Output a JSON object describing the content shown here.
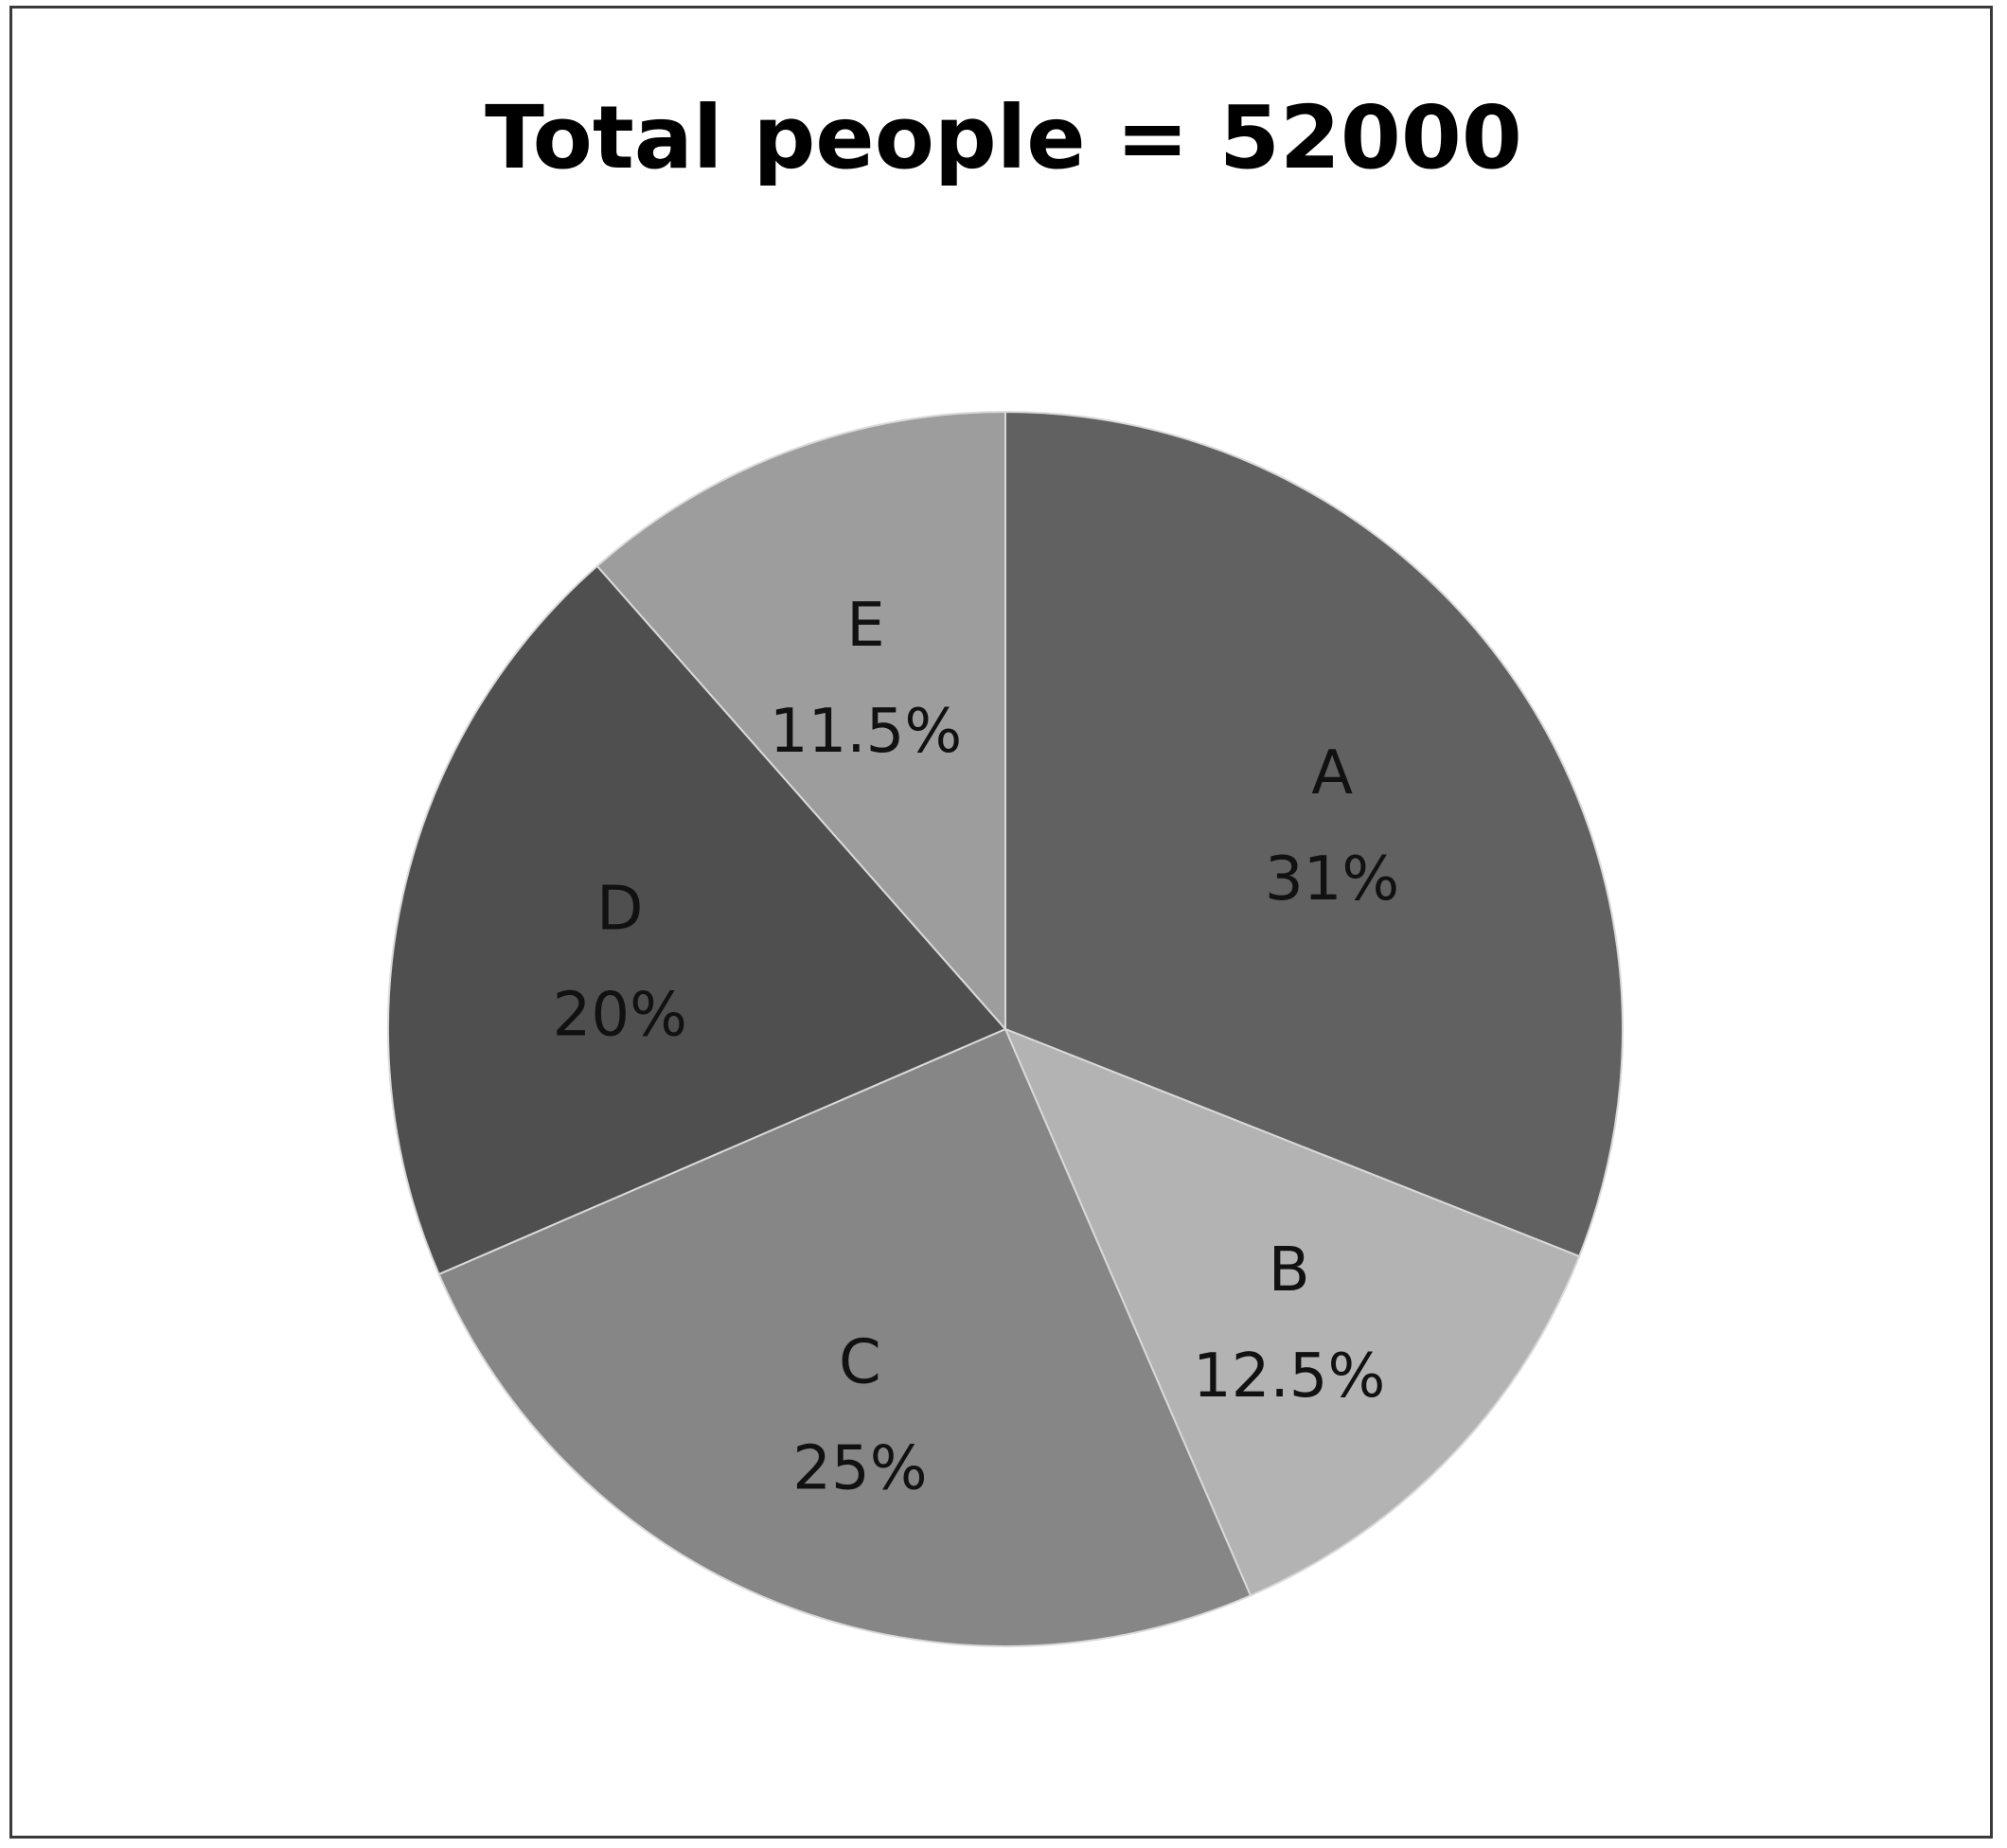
{
  "chart_data": {
    "type": "pie",
    "title": "Total people = 52000",
    "slices": [
      {
        "name": "A",
        "value": 31,
        "label": "31%",
        "color": "#616161"
      },
      {
        "name": "B",
        "value": 12.5,
        "label": "12.5%",
        "color": "#b3b3b3"
      },
      {
        "name": "C",
        "value": 25,
        "label": "25%",
        "color": "#868686"
      },
      {
        "name": "D",
        "value": 20,
        "label": "20%",
        "color": "#4f4f4f"
      },
      {
        "name": "E",
        "value": 11.5,
        "label": "11.5%",
        "color": "#9d9d9d"
      }
    ],
    "start": "12 o'clock",
    "direction": "clockwise",
    "legend": "none"
  }
}
